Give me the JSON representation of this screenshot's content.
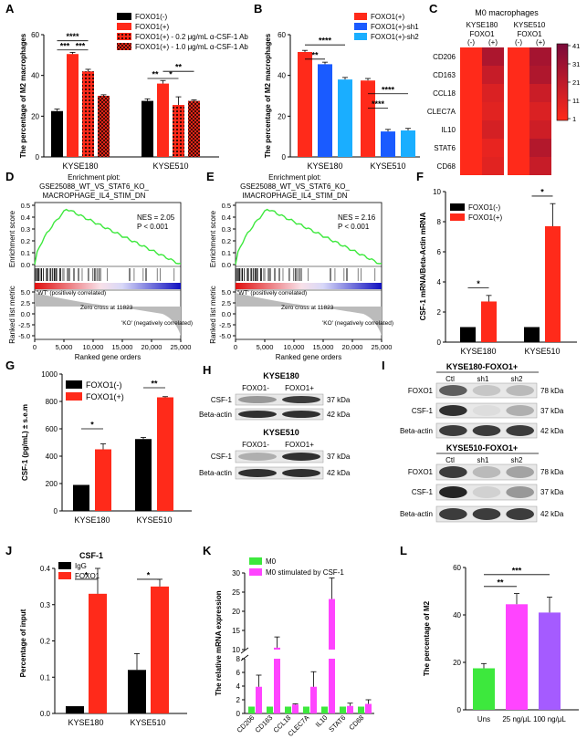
{
  "panelA": {
    "letter": "A",
    "ylabel": "The percentage of M2 macrophages",
    "yticks": [
      "0",
      "20",
      "40",
      "60"
    ],
    "ymax": 60,
    "categories": [
      "KYSE180",
      "KYSE510"
    ],
    "legend": [
      "FOXO1(-)",
      "FOXO1(+)",
      "FOXO1(+) - 0.2 μg/mL α-CSF-1 Ab",
      "FOXO1(+) - 1.0 μg/mL α-CSF-1 Ab"
    ],
    "groups": [
      [
        22.5,
        50.5,
        42,
        30
      ],
      [
        27.5,
        36,
        25.5,
        27.5
      ]
    ],
    "errors": [
      [
        1,
        0.8,
        1,
        0.5
      ],
      [
        1,
        1.5,
        4,
        0.5
      ]
    ],
    "sig": [
      {
        "g": 0,
        "a": 0,
        "b": 1,
        "y": 52.5,
        "t": "***"
      },
      {
        "g": 0,
        "a": 1,
        "b": 2,
        "y": 52.5,
        "t": "***"
      },
      {
        "g": 0,
        "a": 0,
        "b": 2,
        "y": 57,
        "t": "****"
      },
      {
        "g": 1,
        "a": 0,
        "b": 1,
        "y": 38.5,
        "t": "**"
      },
      {
        "g": 1,
        "a": 1,
        "b": 2,
        "y": 38.5,
        "t": "*"
      },
      {
        "g": 1,
        "a": 1,
        "b": 3,
        "y": 42,
        "t": "**"
      }
    ]
  },
  "panelB": {
    "letter": "B",
    "ylabel": "The percentage of M2 macrophages",
    "yticks": [
      "0",
      "20",
      "40",
      "60"
    ],
    "ymax": 60,
    "categories": [
      "KYSE180",
      "KYSE510"
    ],
    "legend": [
      "FOXO1(+)",
      "FOXO1(+)-sh1",
      "FOXO1(+)-sh2"
    ],
    "groups": [
      [
        51.5,
        45.5,
        38
      ],
      [
        37.5,
        12.5,
        13
      ]
    ],
    "errors": [
      [
        0.8,
        1,
        1
      ],
      [
        1,
        1,
        1
      ]
    ],
    "sig": [
      {
        "g": 0,
        "a": 0,
        "b": 1,
        "y": 48,
        "t": "**"
      },
      {
        "g": 0,
        "a": 0,
        "b": 2,
        "y": 55,
        "t": "****"
      },
      {
        "g": 1,
        "a": 0,
        "b": 1,
        "y": 24,
        "t": "****"
      },
      {
        "g": 1,
        "a": 0,
        "b": 2,
        "y": 31,
        "t": "****"
      }
    ]
  },
  "panelC": {
    "letter": "C",
    "title": "M0 macrophages",
    "cols": [
      "KYSE180",
      "KYSE510"
    ],
    "sub": [
      "FOXO1",
      "FOXO1"
    ],
    "signs": [
      "(-)",
      "(+)",
      "(-)",
      "(+)"
    ],
    "rows": [
      "CD206",
      "CD163",
      "CCL18",
      "CLEC7A",
      "IL10",
      "STAT6",
      "CD68"
    ],
    "values": [
      [
        1,
        26,
        1,
        28
      ],
      [
        1,
        18,
        1,
        25
      ],
      [
        1,
        12,
        1,
        17
      ],
      [
        1,
        10,
        1,
        12
      ],
      [
        1,
        14,
        1,
        16
      ],
      [
        1,
        8,
        1,
        24
      ],
      [
        1,
        10,
        1,
        18
      ]
    ],
    "scale": [
      "41",
      "31",
      "21",
      "11",
      "1"
    ]
  },
  "panelD": {
    "letter": "D",
    "title1": "Enrichment plot:",
    "title2": "GSE25088_WT_VS_STAT6_KO_",
    "title3": "MACROPHAGE_IL4_STIM_DN",
    "nes": "NES = 2.05",
    "p": "P < 0.001",
    "es_label": "Enrichment score",
    "rl_label": "Ranked list metric",
    "xlabel": "Ranked gene orders",
    "es_ticks": [
      "0.0",
      "0.1",
      "0.2",
      "0.3",
      "0.4",
      "0.5"
    ],
    "rl_ticks": [
      "5.0",
      "2.5",
      "0.0",
      "-2.5",
      "-5.0"
    ],
    "xticks": [
      "0",
      "5,000",
      "10,000",
      "15,000",
      "20,000",
      "25,000"
    ],
    "pos_label": "'WT' (positively correlated)",
    "neg_label": "'KO' (negatively correlated)",
    "zero_label": "Zero cross at 11823"
  },
  "panelE": {
    "letter": "E",
    "title1": "Enrichment plot:",
    "title2": "GSE25088_WT_VS_STAT6_KO_",
    "title3": "IMACROPHAGE_IL4_STIM_DN",
    "nes": "NES = 2.16",
    "p": "P < 0.001",
    "es_label": "Enrichment score",
    "rl_label": "Ranked list metric",
    "xlabel": "Ranked gene orders",
    "es_ticks": [
      "0.0",
      "0.1",
      "0.2",
      "0.3",
      "0.4",
      "0.5"
    ],
    "rl_ticks": [
      "5.0",
      "2.5",
      "0.0",
      "-2.5",
      "-5.0"
    ],
    "xticks": [
      "0",
      "5,000",
      "10,000",
      "15,000",
      "20,000",
      "25,000"
    ],
    "pos_label": "'WT' (positively correlated)",
    "neg_label": "'KO' (negatively correlated)",
    "zero_label": "Zero cross at 11823"
  },
  "panelF": {
    "letter": "F",
    "ylabel": "CSF-1 mRNA/Beta-Actin mRNA",
    "yticks": [
      "0",
      "2",
      "4",
      "6",
      "8",
      "10"
    ],
    "ymax": 10,
    "categories": [
      "KYSE180",
      "KYSE510"
    ],
    "legend": [
      "FOXO1(-)",
      "FOXO1(+)"
    ],
    "groups": [
      [
        1,
        2.7
      ],
      [
        1,
        7.7
      ]
    ],
    "errors": [
      [
        0,
        0.4
      ],
      [
        0,
        1.5
      ]
    ],
    "sig": [
      {
        "g": 0,
        "y": 3.6,
        "t": "*"
      },
      {
        "g": 1,
        "y": 9.7,
        "t": "*"
      }
    ]
  },
  "panelG": {
    "letter": "G",
    "ylabel": "CSF-1 (pg/mL) ± s.e.m",
    "yticks": [
      "0",
      "200",
      "400",
      "600",
      "800",
      "1000"
    ],
    "ymax": 1000,
    "categories": [
      "KYSE180",
      "KYSE510"
    ],
    "legend": [
      "FOXO1(-)",
      "FOXO1(+)"
    ],
    "groups": [
      [
        190,
        450
      ],
      [
        525,
        830
      ]
    ],
    "errors": [
      [
        0,
        40
      ],
      [
        12,
        5
      ]
    ],
    "sig": [
      {
        "g": 0,
        "y": 600,
        "t": "*"
      },
      {
        "g": 1,
        "y": 900,
        "t": "**"
      }
    ]
  },
  "panelH": {
    "letter": "H",
    "t1": "KYSE180",
    "t2": "KYSE510",
    "lanes": [
      "FOXO1-",
      "FOXO1+"
    ],
    "rows1": [
      "CSF-1",
      "Beta-actin"
    ],
    "rows2": [
      "CSF-1",
      "Beta-actin"
    ],
    "kda1": [
      "37 kDa",
      "42 kDa"
    ],
    "kda2": [
      "37 kDa",
      "42 kDa"
    ]
  },
  "panelI": {
    "letter": "I",
    "t1": "KYSE180-FOXO1+",
    "t2": "KYSE510-FOXO1+",
    "lanes": [
      "Ctl",
      "sh1",
      "sh2"
    ],
    "rows1": [
      "FOXO1",
      "CSF-1",
      "Beta-actin"
    ],
    "rows2": [
      "FOXO1",
      "CSF-1",
      "Beta-actin"
    ],
    "kda1": [
      "78 kDa",
      "37 kDa",
      "42 kDa"
    ],
    "kda2": [
      "78 kDa",
      "37 kDa",
      "42 kDa"
    ]
  },
  "panelJ": {
    "letter": "J",
    "title": "CSF-1",
    "ylabel": "Percentage of input",
    "yticks": [
      "0.0",
      "0.1",
      "0.2",
      "0.3",
      "0.4"
    ],
    "ymax": 0.4,
    "categories": [
      "KYSE180",
      "KYSE510"
    ],
    "legend": [
      "IgG",
      "FOXO1"
    ],
    "groups": [
      [
        0.02,
        0.33
      ],
      [
        0.12,
        0.35
      ]
    ],
    "errors": [
      [
        0,
        0.07
      ],
      [
        0.045,
        0.02
      ]
    ],
    "sig": [
      {
        "g": 0,
        "y": 0.37,
        "t": "*"
      },
      {
        "g": 1,
        "y": 0.37,
        "t": "*"
      }
    ]
  },
  "panelK": {
    "letter": "K",
    "ylabel": "The relative mRNA expression",
    "legend": [
      "M0",
      "M0 stimulated by CSF-1"
    ],
    "yticks_low": [
      "0",
      "2",
      "4",
      "6",
      "8"
    ],
    "yticks_high": [
      "10",
      "15",
      "20",
      "25",
      "30"
    ],
    "categories": [
      "CD206",
      "CD163",
      "CCL18",
      "CLEC7A",
      "IL10",
      "STAT6",
      "CD68"
    ],
    "m0": [
      1,
      1,
      1,
      1,
      1,
      1,
      1
    ],
    "csf": [
      3.9,
      10.5,
      1.3,
      3.9,
      23.2,
      1.1,
      1.4
    ],
    "errors": [
      1.7,
      2.8,
      0.1,
      2.2,
      5.5,
      0.4,
      0.6
    ]
  },
  "panelL": {
    "letter": "L",
    "ylabel": "The percentage of M2",
    "yticks": [
      "0",
      "20",
      "40",
      "60"
    ],
    "ymax": 60,
    "categories": [
      "Uns",
      "25 ng/μL",
      "100 ng/μL"
    ],
    "values": [
      17.5,
      44.5,
      41
    ],
    "errors": [
      2,
      4.5,
      6.5
    ],
    "sig": [
      {
        "a": 0,
        "b": 1,
        "y": 52,
        "t": "**"
      },
      {
        "a": 0,
        "b": 2,
        "y": 57,
        "t": "***"
      }
    ]
  },
  "colors": {
    "black": "#000000",
    "red": "#ff2a1a",
    "blue": "#1a5bff",
    "cyan": "#1aaeff",
    "green": "#3de83d",
    "magenta": "#ff44ff",
    "purple": "#a55bff",
    "heatLow": "#ff2a1a",
    "heatHigh": "#7a0a3a"
  }
}
